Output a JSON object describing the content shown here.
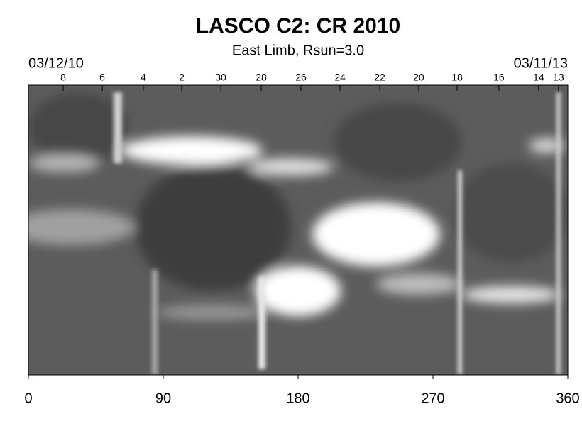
{
  "chart_data": {
    "type": "image",
    "title": "LASCO C2: CR 2010",
    "subtitle": "East Limb, Rsun=3.0",
    "start_date": "03/12/10",
    "end_date": "03/11/13",
    "xlim": [
      0,
      360
    ],
    "xticks": [
      0,
      90,
      180,
      270,
      360
    ],
    "x2ticks": [
      {
        "value": 23.2,
        "label": "8"
      },
      {
        "value": 49.3,
        "label": "6"
      },
      {
        "value": 76.7,
        "label": "4"
      },
      {
        "value": 102.3,
        "label": "2"
      },
      {
        "value": 128.4,
        "label": "30"
      },
      {
        "value": 155.4,
        "label": "28"
      },
      {
        "value": 181.9,
        "label": "26"
      },
      {
        "value": 208,
        "label": "24"
      },
      {
        "value": 234.5,
        "label": "22"
      },
      {
        "value": 260.5,
        "label": "20"
      },
      {
        "value": 286.1,
        "label": "18"
      },
      {
        "value": 314,
        "label": "16"
      },
      {
        "value": 340.5,
        "label": "14"
      },
      {
        "value": 353.8,
        "label": "13"
      }
    ]
  }
}
